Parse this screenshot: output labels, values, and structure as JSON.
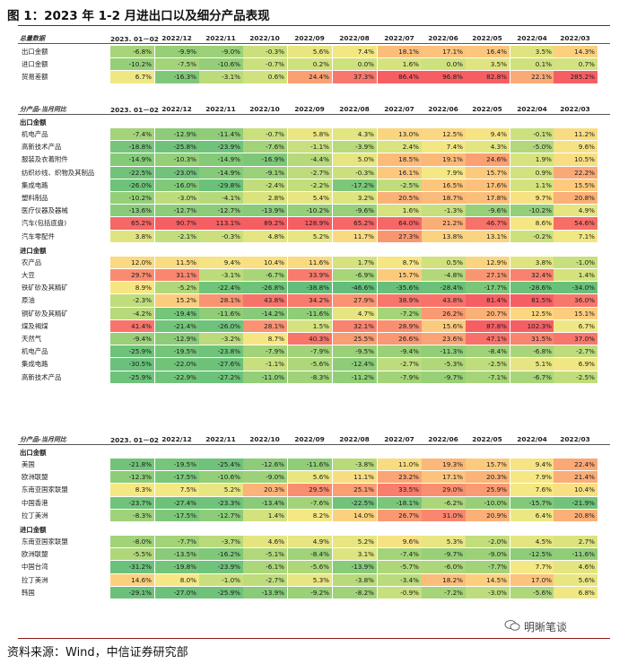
{
  "title": "图 1：2023 年 1-2 月进出口以及细分产品表现",
  "source": "资料来源：Wind，中信证券研究部",
  "watermark": "明晰笔谈",
  "columns": [
    "2023. 01－02",
    "2022/12",
    "2022/11",
    "2022/10",
    "2022/09",
    "2022/08",
    "2022/07",
    "2022/06",
    "2022/05",
    "2022/04",
    "2022/03"
  ],
  "sections": [
    {
      "header": "总量数据",
      "groups": [
        {
          "label": "",
          "rows": [
            {
              "name": "出口金额",
              "values": [
                "-6.8%",
                "-9.9%",
                "-9.0%",
                "-0.3%",
                "5.6%",
                "7.4%",
                "18.1%",
                "17.1%",
                "16.4%",
                "3.5%",
                "14.3%"
              ]
            },
            {
              "name": "进口金额",
              "values": [
                "-10.2%",
                "-7.5%",
                "-10.6%",
                "-0.7%",
                "0.2%",
                "0.0%",
                "1.6%",
                "0.0%",
                "3.5%",
                "0.1%",
                "0.7%"
              ]
            },
            {
              "name": "贸易差额",
              "values": [
                "6.7%",
                "-16.3%",
                "-3.1%",
                "0.6%",
                "24.4%",
                "37.3%",
                "86.4%",
                "96.8%",
                "82.8%",
                "22.1%",
                "285.2%"
              ]
            }
          ]
        }
      ]
    },
    {
      "header": "分产品-当月同比",
      "groups": [
        {
          "label": "出口金额",
          "rows": [
            {
              "name": "机电产品",
              "values": [
                "-7.4%",
                "-12.9%",
                "-11.4%",
                "-0.7%",
                "5.8%",
                "4.3%",
                "13.0%",
                "12.5%",
                "9.4%",
                "-0.1%",
                "11.2%"
              ]
            },
            {
              "name": "高新技术产品",
              "values": [
                "-18.8%",
                "-25.8%",
                "-23.9%",
                "-7.6%",
                "-1.1%",
                "-3.9%",
                "2.4%",
                "7.4%",
                "4.3%",
                "-5.0%",
                "9.6%"
              ]
            },
            {
              "name": "服装及衣着附件",
              "values": [
                "-14.9%",
                "-10.3%",
                "-14.9%",
                "-16.9%",
                "-4.4%",
                "5.0%",
                "18.5%",
                "19.1%",
                "24.6%",
                "1.9%",
                "10.5%"
              ]
            },
            {
              "name": "纺织纱线、织物及其制品",
              "values": [
                "-22.5%",
                "-23.0%",
                "-14.9%",
                "-9.1%",
                "-2.7%",
                "-0.3%",
                "16.1%",
                "7.9%",
                "15.7%",
                "0.9%",
                "22.2%"
              ]
            },
            {
              "name": "集成电路",
              "values": [
                "-26.0%",
                "-16.0%",
                "-29.8%",
                "-2.4%",
                "-2.2%",
                "-17.2%",
                "-2.5%",
                "16.5%",
                "17.6%",
                "1.1%",
                "15.5%"
              ]
            },
            {
              "name": "塑料制品",
              "values": [
                "-10.2%",
                "-3.0%",
                "-4.1%",
                "2.8%",
                "5.4%",
                "3.2%",
                "20.5%",
                "18.7%",
                "17.8%",
                "9.7%",
                "20.8%"
              ]
            },
            {
              "name": "医疗仪器及器械",
              "values": [
                "-13.6%",
                "-12.7%",
                "-12.7%",
                "-13.9%",
                "-10.2%",
                "-9.6%",
                "1.6%",
                "-1.3%",
                "-9.6%",
                "-10.2%",
                "4.9%"
              ]
            },
            {
              "name": "汽车(包括底盘)",
              "values": [
                "65.2%",
                "90.7%",
                "113.1%",
                "89.2%",
                "128.9%",
                "65.2%",
                "64.0%",
                "21.2%",
                "46.7%",
                "8.6%",
                "54.6%"
              ]
            },
            {
              "name": "汽车零配件",
              "values": [
                "3.8%",
                "-2.1%",
                "-0.3%",
                "4.8%",
                "5.2%",
                "11.7%",
                "27.3%",
                "13.8%",
                "13.1%",
                "-0.2%",
                "7.1%"
              ]
            }
          ]
        },
        {
          "label": "进口金额",
          "rows": [
            {
              "name": "农产品",
              "values": [
                "12.0%",
                "11.5%",
                "9.4%",
                "10.4%",
                "11.6%",
                "1.7%",
                "8.7%",
                "0.5%",
                "12.9%",
                "3.8%",
                "-1.0%"
              ]
            },
            {
              "name": "大豆",
              "values": [
                "29.7%",
                "31.1%",
                "-3.1%",
                "-6.7%",
                "33.9%",
                "-6.9%",
                "15.7%",
                "-4.8%",
                "27.1%",
                "32.4%",
                "1.4%"
              ]
            },
            {
              "name": "铁矿砂及其精矿",
              "values": [
                "8.9%",
                "-5.2%",
                "-22.4%",
                "-26.8%",
                "-38.8%",
                "-46.6%",
                "-35.6%",
                "-28.4%",
                "-17.7%",
                "-28.6%",
                "-34.0%"
              ]
            },
            {
              "name": "原油",
              "values": [
                "-2.3%",
                "15.2%",
                "28.1%",
                "43.8%",
                "34.2%",
                "27.9%",
                "38.9%",
                "43.8%",
                "81.4%",
                "81.5%",
                "36.0%"
              ]
            },
            {
              "name": "铜矿砂及其精矿",
              "values": [
                "-4.2%",
                "-19.4%",
                "-11.6%",
                "-14.2%",
                "-11.6%",
                "4.7%",
                "-7.2%",
                "26.2%",
                "20.7%",
                "12.5%",
                "15.1%"
              ]
            },
            {
              "name": "煤及褐煤",
              "values": [
                "41.4%",
                "-21.4%",
                "-26.0%",
                "28.1%",
                "1.5%",
                "32.1%",
                "28.9%",
                "15.6%",
                "87.8%",
                "102.3%",
                "6.7%"
              ]
            },
            {
              "name": "天然气",
              "values": [
                "-9.4%",
                "-12.9%",
                "-3.2%",
                "8.7%",
                "40.3%",
                "25.5%",
                "26.6%",
                "23.6%",
                "47.1%",
                "31.5%",
                "37.0%"
              ]
            },
            {
              "name": "机电产品",
              "values": [
                "-25.9%",
                "-19.5%",
                "-23.8%",
                "-7.9%",
                "-7.9%",
                "-9.5%",
                "-9.4%",
                "-11.3%",
                "-8.4%",
                "-6.8%",
                "-2.7%"
              ]
            },
            {
              "name": "集成电路",
              "values": [
                "-30.5%",
                "-22.0%",
                "-27.6%",
                "-1.1%",
                "-5.6%",
                "-12.4%",
                "-2.7%",
                "-5.3%",
                "-2.5%",
                "5.1%",
                "6.9%"
              ]
            },
            {
              "name": "高新技术产品",
              "values": [
                "-25.9%",
                "-22.9%",
                "-27.2%",
                "-11.0%",
                "-8.3%",
                "-11.2%",
                "-7.9%",
                "-9.7%",
                "-7.1%",
                "-6.7%",
                "-2.5%"
              ]
            }
          ]
        }
      ]
    },
    {
      "header": "分产品-当月同比",
      "groups": [
        {
          "label": "出口金额",
          "rows": [
            {
              "name": "美国",
              "values": [
                "-21.8%",
                "-19.5%",
                "-25.4%",
                "-12.6%",
                "-11.6%",
                "-3.8%",
                "11.0%",
                "19.3%",
                "15.7%",
                "9.4%",
                "22.4%"
              ]
            },
            {
              "name": "欧洲联盟",
              "values": [
                "-12.3%",
                "-17.5%",
                "-10.6%",
                "-9.0%",
                "5.6%",
                "11.1%",
                "23.2%",
                "17.1%",
                "20.3%",
                "7.9%",
                "21.4%"
              ]
            },
            {
              "name": "东南亚国家联盟",
              "values": [
                "8.3%",
                "7.5%",
                "5.2%",
                "20.3%",
                "29.5%",
                "25.1%",
                "33.5%",
                "29.0%",
                "25.9%",
                "7.6%",
                "10.4%"
              ]
            },
            {
              "name": "中国香港",
              "values": [
                "-23.7%",
                "-27.4%",
                "-23.3%",
                "-13.4%",
                "-7.6%",
                "-22.5%",
                "-18.1%",
                "-6.2%",
                "-10.0%",
                "-15.7%",
                "-21.9%"
              ]
            },
            {
              "name": "拉丁美洲",
              "values": [
                "-8.3%",
                "-17.5%",
                "-12.7%",
                "1.4%",
                "8.2%",
                "14.0%",
                "26.7%",
                "31.0%",
                "20.9%",
                "6.4%",
                "20.8%"
              ]
            }
          ]
        },
        {
          "label": "进口金额",
          "rows": [
            {
              "name": "东南亚国家联盟",
              "values": [
                "-8.0%",
                "-7.7%",
                "-3.7%",
                "4.6%",
                "4.9%",
                "5.2%",
                "9.6%",
                "5.3%",
                "-2.0%",
                "4.5%",
                "2.7%"
              ]
            },
            {
              "name": "欧洲联盟",
              "values": [
                "-5.5%",
                "-13.5%",
                "-16.2%",
                "-5.1%",
                "-8.4%",
                "3.1%",
                "-7.4%",
                "-9.7%",
                "-9.0%",
                "-12.5%",
                "-11.6%"
              ]
            },
            {
              "name": "中国台湾",
              "values": [
                "-31.2%",
                "-19.8%",
                "-23.9%",
                "-6.1%",
                "-5.6%",
                "-13.9%",
                "-5.7%",
                "-6.0%",
                "-7.7%",
                "7.7%",
                "4.6%"
              ]
            },
            {
              "name": "拉丁美洲",
              "values": [
                "14.6%",
                "8.0%",
                "-1.0%",
                "-2.7%",
                "5.3%",
                "-3.8%",
                "-3.4%",
                "18.2%",
                "14.5%",
                "17.0%",
                "5.6%"
              ]
            },
            {
              "name": "韩国",
              "values": [
                "-29.1%",
                "-27.0%",
                "-25.9%",
                "-13.9%",
                "-9.2%",
                "-8.2%",
                "-0.9%",
                "-7.2%",
                "-3.0%",
                "-5.6%",
                "6.8%"
              ]
            }
          ]
        }
      ]
    }
  ]
}
